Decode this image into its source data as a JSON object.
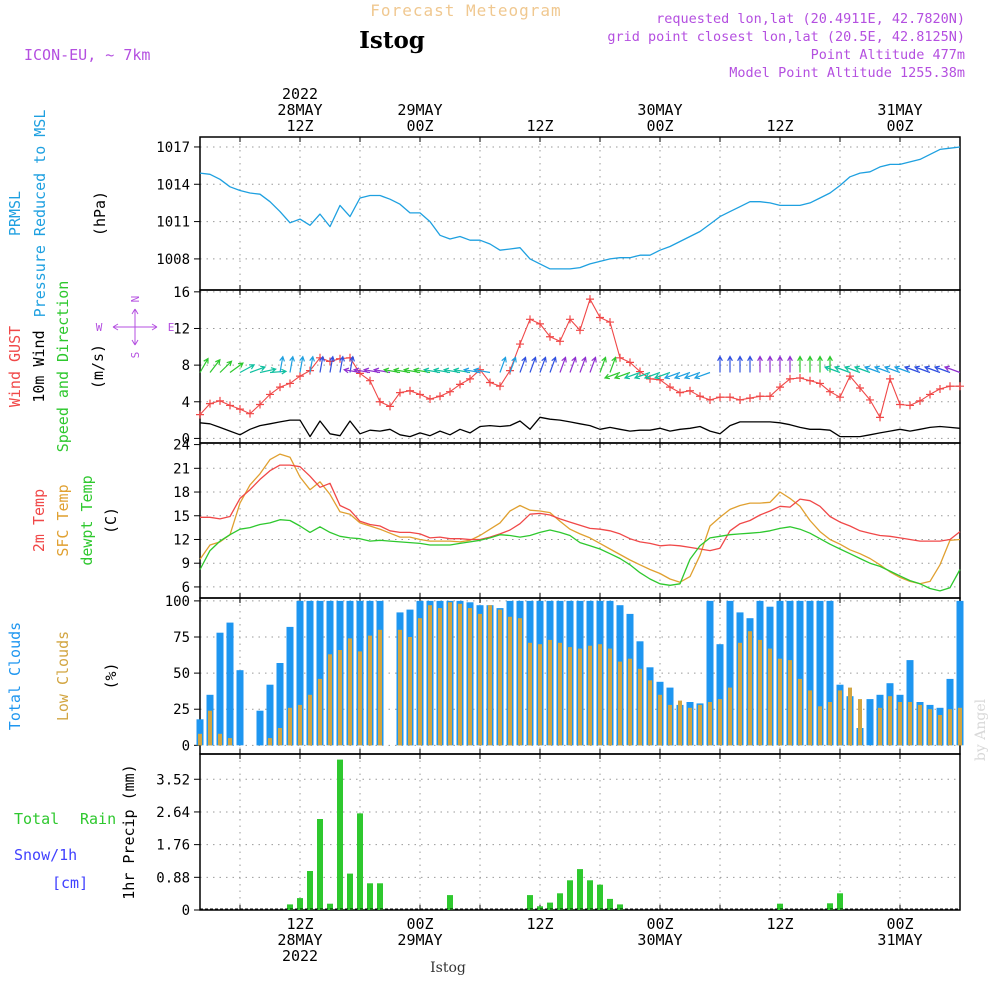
{
  "header": {
    "product": "Forecast Meteogram",
    "location": "Istog",
    "model": "ICON-EU, ~ 7km",
    "requested": "requested lon,lat (20.4911E, 42.7820N)",
    "grid": "grid point closest lon,lat (20.5E, 42.8125N)",
    "altitude": "Point Altitude 477m",
    "model_altitude": "Model Point Altitude 1255.38m",
    "watermark": "by Angel",
    "footer": "Istog"
  },
  "colors": {
    "pressure": "#1ea0e0",
    "gust": "#f04848",
    "wind10m": "#000000",
    "speeddir": "#2ec82e",
    "temp2m": "#f04848",
    "sfctemp": "#e0a030",
    "dewpt": "#2ec82e",
    "totalcloud": "#1e96f0",
    "lowcloud": "#d2a541",
    "rain": "#2ec82e",
    "snow": "#4040ff",
    "header_purple": "#b44fe0",
    "product_title": "#f0c890"
  },
  "time_axis": {
    "top": [
      {
        "idx": 10,
        "lines": [
          "2022",
          "28MAY",
          "12Z"
        ]
      },
      {
        "idx": 22,
        "lines": [
          "29MAY",
          "00Z"
        ]
      },
      {
        "idx": 34,
        "lines": [
          "12Z"
        ]
      },
      {
        "idx": 46,
        "lines": [
          "30MAY",
          "00Z"
        ]
      },
      {
        "idx": 58,
        "lines": [
          "12Z"
        ]
      },
      {
        "idx": 70,
        "lines": [
          "31MAY",
          "00Z"
        ]
      }
    ],
    "bottom": [
      {
        "idx": 10,
        "lines": [
          "12Z",
          "28MAY",
          "2022"
        ]
      },
      {
        "idx": 22,
        "lines": [
          "00Z",
          "29MAY"
        ]
      },
      {
        "idx": 34,
        "lines": [
          "12Z"
        ]
      },
      {
        "idx": 46,
        "lines": [
          "00Z",
          "30MAY"
        ]
      },
      {
        "idx": 58,
        "lines": [
          "12Z"
        ]
      },
      {
        "idx": 70,
        "lines": [
          "00Z",
          "31MAY"
        ]
      }
    ]
  },
  "chart_data": [
    {
      "type": "line",
      "panel": "pressure",
      "ylabel_lines": [
        "PRMSL",
        "Pressure Reduced to MSL",
        "(hPa)"
      ],
      "ylim": [
        1005.5,
        1017.8
      ],
      "yticks": [
        1008,
        1011,
        1014,
        1017
      ],
      "grid": true,
      "x_hours_from_28may_02z": [
        0,
        1,
        2,
        3,
        4,
        5,
        6,
        7,
        8,
        9,
        10,
        11,
        12,
        13,
        14,
        15,
        16,
        17,
        18,
        19,
        20,
        21,
        22,
        23,
        24,
        25,
        26,
        27,
        28,
        29,
        30,
        31,
        32,
        33,
        34,
        35,
        36,
        37,
        38,
        39,
        40,
        41,
        42,
        43,
        44,
        45,
        46,
        47,
        48,
        49,
        50,
        51,
        52,
        53,
        54,
        55,
        56,
        57,
        58,
        59,
        60,
        61,
        62,
        63,
        64,
        65,
        66,
        67,
        68,
        69,
        70,
        71,
        72,
        73,
        74,
        75,
        76
      ],
      "series": [
        {
          "values": [
            1014.9,
            1014.8,
            1014.4,
            1013.8,
            1013.5,
            1013.3,
            1013.2,
            1012.6,
            1011.8,
            1010.9,
            1011.2,
            1010.7,
            1011.6,
            1010.6,
            1012.3,
            1011.4,
            1012.9,
            1013.1,
            1013.1,
            1012.8,
            1012.4,
            1011.7,
            1011.7,
            1011.0,
            1009.9,
            1009.6,
            1009.8,
            1009.5,
            1009.5,
            1009.2,
            1008.7,
            1008.8,
            1008.9,
            1008.0,
            1007.6,
            1007.2,
            1007.2,
            1007.2,
            1007.3,
            1007.6,
            1007.8,
            1008.0,
            1008.1,
            1008.1,
            1008.3,
            1008.3,
            1008.7,
            1009.0,
            1009.4,
            1009.8,
            1010.2,
            1010.8,
            1011.4,
            1011.8,
            1012.2,
            1012.6,
            1012.6,
            1012.5,
            1012.3,
            1012.3,
            1012.3,
            1012.5,
            1012.9,
            1013.3,
            1013.9,
            1014.6,
            1014.9,
            1015.0,
            1015.4,
            1015.6,
            1015.6,
            1015.8,
            1016.0,
            1016.4,
            1016.8,
            1016.9,
            1017.0
          ]
        }
      ]
    },
    {
      "type": "line",
      "panel": "wind",
      "ylabel_lines": [
        "Wind GUST",
        "10m Wind",
        "Speed and Direction",
        "(m/s)"
      ],
      "ylim": [
        -0.5,
        16.2
      ],
      "yticks": [
        0,
        4,
        8,
        12,
        16
      ],
      "grid": true,
      "compass": {
        "n": "N",
        "s": "S",
        "w": "W",
        "e": "E"
      },
      "series": [
        {
          "name": "Wind GUST",
          "values": [
            2.6,
            3.8,
            4.1,
            3.6,
            3.2,
            2.7,
            3.7,
            4.8,
            5.6,
            6.0,
            6.8,
            7.4,
            8.8,
            8.4,
            8.7,
            8.8,
            7.1,
            6.3,
            4.0,
            3.5,
            5.0,
            5.2,
            4.8,
            4.3,
            4.6,
            5.1,
            5.9,
            6.5,
            7.5,
            6.1,
            5.7,
            7.4,
            10.3,
            13.0,
            12.5,
            11.1,
            10.6,
            13.0,
            11.8,
            15.2,
            13.2,
            12.7,
            8.8,
            8.3,
            7.3,
            6.5,
            6.4,
            5.6,
            5.0,
            5.2,
            4.6,
            4.2,
            4.5,
            4.5,
            4.2,
            4.4,
            4.6,
            4.6,
            5.6,
            6.5,
            6.6,
            6.3,
            6.0,
            5.1,
            4.5,
            6.8,
            5.5,
            4.2,
            2.3,
            6.5,
            3.7,
            3.6,
            4.1,
            4.8,
            5.4,
            5.7,
            5.7
          ]
        },
        {
          "name": "10m Wind",
          "values": [
            1.7,
            1.6,
            1.2,
            0.8,
            0.4,
            1.0,
            1.4,
            1.6,
            1.8,
            2.0,
            2.0,
            0.2,
            1.9,
            0.5,
            0.3,
            1.9,
            0.5,
            0.9,
            0.8,
            1.0,
            0.4,
            0.2,
            0.6,
            0.3,
            0.8,
            0.4,
            1.0,
            0.6,
            1.3,
            1.4,
            1.3,
            1.4,
            1.9,
            1.0,
            2.3,
            2.1,
            2.0,
            1.8,
            1.6,
            1.4,
            1.0,
            1.2,
            1.0,
            0.8,
            0.9,
            0.9,
            1.1,
            0.8,
            1.0,
            1.1,
            1.3,
            0.8,
            0.5,
            1.4,
            1.8,
            1.8,
            1.8,
            1.8,
            1.7,
            1.5,
            1.2,
            1.0,
            1.0,
            0.9,
            0.2,
            0.2,
            0.2,
            0.4,
            0.6,
            0.8,
            1.0,
            0.8,
            1.0,
            1.2,
            1.3,
            1.2,
            1.1
          ]
        }
      ]
    },
    {
      "type": "line",
      "panel": "temperature",
      "ylabel_lines": [
        "2m Temp",
        "SFC Temp",
        "dewpt Temp",
        "(C)"
      ],
      "ylim": [
        4.6,
        24.2
      ],
      "yticks": [
        6,
        9,
        12,
        15,
        18,
        21,
        24
      ],
      "grid": true,
      "series": [
        {
          "name": "2m Temp",
          "values": [
            14.8,
            14.8,
            14.6,
            14.9,
            17.2,
            18.3,
            19.6,
            20.7,
            21.4,
            21.4,
            21.2,
            20.0,
            18.6,
            19.1,
            16.3,
            15.7,
            14.3,
            13.9,
            13.7,
            13.1,
            12.9,
            12.9,
            12.7,
            12.2,
            12.3,
            12.1,
            12.1,
            12.0,
            12.0,
            12.3,
            12.7,
            13.2,
            14.0,
            15.2,
            15.3,
            15.1,
            14.6,
            14.2,
            13.8,
            13.4,
            13.3,
            13.1,
            12.7,
            12.1,
            11.7,
            11.5,
            11.2,
            11.3,
            11.2,
            11.0,
            10.8,
            10.6,
            10.9,
            13.1,
            14.0,
            14.4,
            15.1,
            15.6,
            16.2,
            16.1,
            17.1,
            16.9,
            16.2,
            14.9,
            14.2,
            13.7,
            13.1,
            12.8,
            12.5,
            12.4,
            12.2,
            12.0,
            11.8,
            11.8,
            11.8,
            12.0,
            13.0
          ]
        },
        {
          "name": "SFC Temp",
          "values": [
            9.5,
            11.3,
            11.7,
            12.6,
            16.6,
            18.9,
            20.3,
            22.1,
            22.8,
            22.4,
            19.9,
            18.3,
            19.3,
            17.7,
            15.5,
            15.2,
            14.1,
            13.7,
            13.3,
            12.8,
            12.3,
            12.3,
            12.0,
            11.8,
            11.8,
            11.8,
            11.7,
            11.9,
            12.5,
            13.3,
            14.1,
            15.6,
            16.3,
            15.7,
            15.6,
            15.4,
            14.3,
            13.3,
            12.7,
            12.2,
            11.5,
            10.8,
            10.1,
            9.4,
            8.8,
            8.2,
            7.7,
            7.0,
            6.6,
            7.3,
            10.0,
            13.7,
            14.8,
            15.8,
            16.3,
            16.6,
            16.6,
            16.7,
            18.0,
            17.2,
            16.2,
            14.4,
            13.0,
            12.0,
            11.4,
            10.7,
            10.2,
            9.6,
            8.8,
            7.9,
            7.2,
            6.7,
            6.4,
            6.7,
            8.8,
            11.9,
            12.0
          ]
        },
        {
          "name": "dewpt Temp",
          "values": [
            8.2,
            10.6,
            11.8,
            12.6,
            13.3,
            13.5,
            13.9,
            14.1,
            14.5,
            14.4,
            13.7,
            12.9,
            13.6,
            12.9,
            12.4,
            12.2,
            12.1,
            11.8,
            11.9,
            11.8,
            11.7,
            11.6,
            11.5,
            11.3,
            11.3,
            11.3,
            11.5,
            11.7,
            11.9,
            12.2,
            12.6,
            12.5,
            12.3,
            12.5,
            12.9,
            13.2,
            12.9,
            12.5,
            11.6,
            11.2,
            10.8,
            10.2,
            9.6,
            8.8,
            7.8,
            7.0,
            6.4,
            6.2,
            6.4,
            9.5,
            11.2,
            12.2,
            12.4,
            12.6,
            12.7,
            12.8,
            12.9,
            13.1,
            13.4,
            13.6,
            13.3,
            12.8,
            12.1,
            11.4,
            10.8,
            10.2,
            9.6,
            9.0,
            8.6,
            8.0,
            7.4,
            6.8,
            6.4,
            5.8,
            5.5,
            5.9,
            8.2
          ]
        }
      ]
    },
    {
      "type": "bar",
      "panel": "clouds",
      "ylabel_lines": [
        "Total Clouds",
        "Low Clouds",
        "(%)"
      ],
      "ylim": [
        -6,
        102
      ],
      "yticks": [
        0,
        25,
        50,
        75,
        100
      ],
      "grid": true,
      "series": [
        {
          "name": "Total Clouds",
          "values": [
            18,
            35,
            78,
            85,
            52,
            0,
            24,
            42,
            57,
            82,
            100,
            100,
            100,
            100,
            100,
            100,
            100,
            100,
            100,
            0,
            92,
            94,
            100,
            100,
            100,
            100,
            100,
            99,
            97,
            97,
            95,
            100,
            100,
            100,
            100,
            100,
            100,
            100,
            100,
            100,
            100,
            100,
            97,
            91,
            72,
            54,
            44,
            40,
            28,
            30,
            29,
            100,
            70,
            100,
            92,
            88,
            100,
            96,
            100,
            100,
            100,
            100,
            100,
            100,
            42,
            34,
            12,
            32,
            35,
            43,
            35,
            59,
            30,
            28,
            26,
            46,
            100
          ]
        },
        {
          "name": "Low Clouds",
          "values": [
            8,
            24,
            8,
            5,
            0,
            0,
            0,
            5,
            12,
            26,
            28,
            35,
            46,
            63,
            66,
            74,
            65,
            76,
            80,
            0,
            80,
            75,
            88,
            97,
            95,
            99,
            98,
            95,
            91,
            97,
            94,
            89,
            88,
            71,
            70,
            73,
            71,
            68,
            67,
            69,
            70,
            67,
            58,
            60,
            53,
            45,
            35,
            28,
            31,
            26,
            28,
            30,
            32,
            40,
            71,
            79,
            73,
            67,
            60,
            59,
            46,
            38,
            27,
            30,
            38,
            40,
            32,
            0,
            26,
            34,
            30,
            30,
            28,
            25,
            21,
            25,
            26
          ]
        }
      ]
    },
    {
      "type": "bar",
      "panel": "precip",
      "ylabel_lines": [
        "1hr Precip (mm)"
      ],
      "legend_left": {
        "total": "Total",
        "rain": "Rain",
        "snow": "Snow/1h",
        "unit": "[cm]"
      },
      "ylim": [
        0,
        4.2
      ],
      "yticks": [
        0,
        0.88,
        1.76,
        2.64,
        3.52
      ],
      "grid": true,
      "series": [
        {
          "name": "Total Rain",
          "values": [
            0,
            0,
            0,
            0,
            0,
            0,
            0,
            0,
            0,
            0.15,
            0.32,
            1.05,
            2.45,
            0.17,
            4.05,
            0.98,
            2.6,
            0.72,
            0.72,
            0,
            0,
            0,
            0,
            0,
            0,
            0.4,
            0,
            0,
            0,
            0,
            0,
            0,
            0,
            0.4,
            0.1,
            0.2,
            0.45,
            0.8,
            1.1,
            0.8,
            0.68,
            0.3,
            0.15,
            0,
            0,
            0,
            0,
            0,
            0,
            0,
            0,
            0,
            0,
            0,
            0,
            0,
            0,
            0,
            0.17,
            0,
            0,
            0,
            0,
            0.18,
            0.45,
            0,
            0,
            0,
            0,
            0,
            0,
            0,
            0,
            0,
            0,
            0,
            0
          ]
        }
      ]
    }
  ]
}
